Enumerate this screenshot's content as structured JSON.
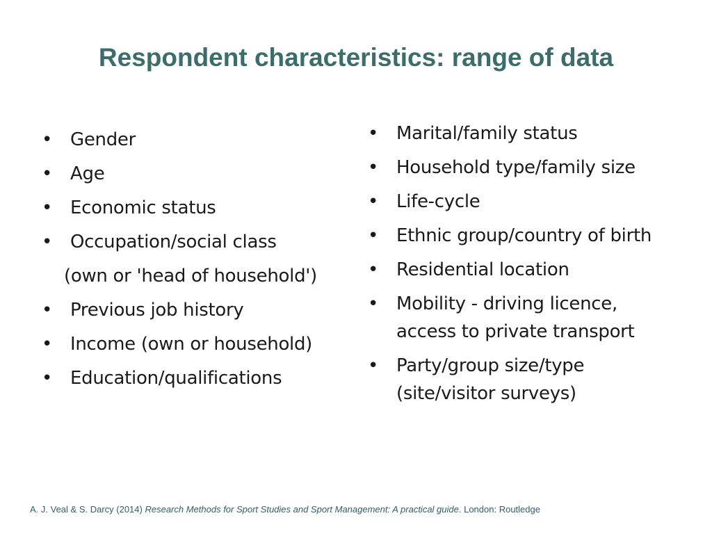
{
  "title": "Respondent characteristics: range of data",
  "bullet_glyph": "•",
  "left_column": {
    "items": [
      {
        "label": "Gender"
      },
      {
        "label": "Age"
      },
      {
        "label": "Economic status"
      },
      {
        "label": "Occupation/social class"
      }
    ],
    "note": "(own or 'head of household')",
    "items_after": [
      {
        "label": "Previous job history"
      },
      {
        "label": "Income (own or household)"
      },
      {
        "label": "Education/qualifications"
      }
    ]
  },
  "right_column": {
    "items": [
      {
        "label": "Marital/family status"
      },
      {
        "label": "Household type/family size"
      },
      {
        "label": "Life-cycle"
      },
      {
        "label": "Ethnic group/country of birth"
      },
      {
        "label": "Residential location"
      },
      {
        "label": "Mobility - driving licence, access to private transport"
      },
      {
        "label": "Party/group size/type (site/visitor surveys)"
      }
    ]
  },
  "footer": {
    "authors": "A. J. Veal & S. Darcy (2014) ",
    "book_title": "Research Methods for Sport Studies and Sport Management: A practical guide",
    "publisher": ". London: Routledge"
  }
}
